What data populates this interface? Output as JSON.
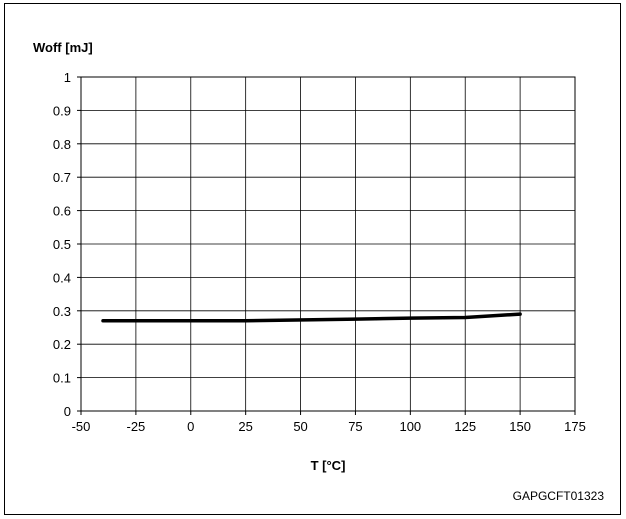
{
  "chart_data": {
    "type": "line",
    "title": "",
    "xlabel": "T [°C]",
    "ylabel": "Woff [mJ]",
    "xlim": [
      -50,
      175
    ],
    "ylim": [
      0,
      1
    ],
    "x_ticks": [
      "-50",
      "-25",
      "0",
      "25",
      "50",
      "75",
      "100",
      "125",
      "150",
      "175"
    ],
    "y_ticks": [
      "0",
      "0.1",
      "0.2",
      "0.3",
      "0.4",
      "0.5",
      "0.6",
      "0.7",
      "0.8",
      "0.9",
      "1"
    ],
    "grid": true,
    "legend": false,
    "series": [
      {
        "color": "#000000",
        "x": [
          -40,
          25,
          75,
          100,
          125,
          150
        ],
        "y": [
          0.27,
          0.27,
          0.275,
          0.278,
          0.28,
          0.29
        ]
      }
    ]
  },
  "figure_code": "GAPGCFT01323"
}
